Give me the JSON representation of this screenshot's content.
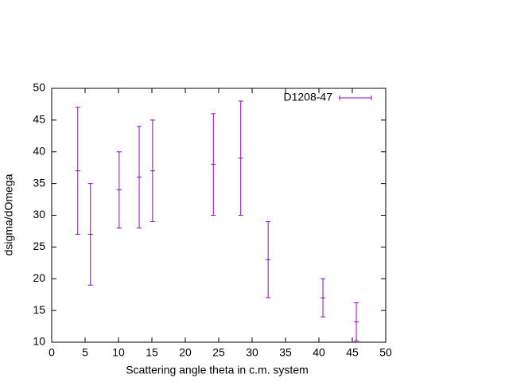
{
  "chart_data": {
    "type": "errorbar",
    "xlabel": "Scattering angle theta in c.m. system",
    "ylabel": "dsigma/dOmega",
    "xlim": [
      0,
      50
    ],
    "xticks": [
      0,
      5,
      10,
      15,
      20,
      25,
      30,
      35,
      40,
      45,
      50
    ],
    "ylim": [
      10,
      50
    ],
    "yticks": [
      10,
      15,
      20,
      25,
      30,
      35,
      40,
      45,
      50
    ],
    "legend": "top-right",
    "series": [
      {
        "name": "D1208-47",
        "color": "#9400d3",
        "x": [
          3.9,
          5.8,
          10.1,
          13.1,
          15.1,
          24.2,
          28.3,
          32.4,
          40.6,
          45.6
        ],
        "values": [
          37,
          27,
          34,
          36,
          37,
          38,
          39,
          23,
          17,
          13.2
        ],
        "errors": [
          10,
          8,
          6,
          8,
          8,
          8,
          9,
          6,
          3,
          3
        ]
      }
    ]
  }
}
